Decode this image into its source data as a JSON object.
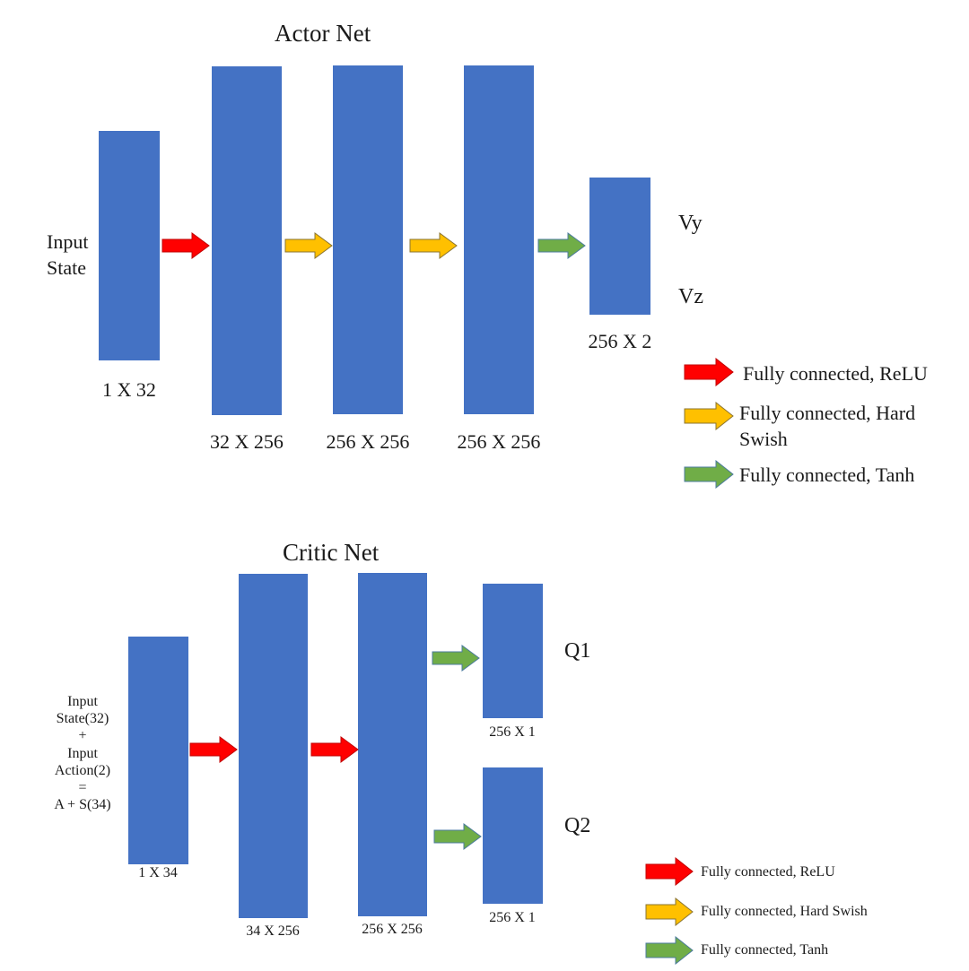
{
  "colors": {
    "layer": "#4472c4",
    "relu": "#ff0000",
    "hard_swish": "#ffc000",
    "tanh": "#70ad47"
  },
  "actor": {
    "title": "Actor Net",
    "input_label_1": "Input",
    "input_label_2": "State",
    "layers": [
      {
        "dim": "1 X 32"
      },
      {
        "dim": "32 X 256"
      },
      {
        "dim": "256 X 256"
      },
      {
        "dim": "256 X 256"
      },
      {
        "dim": "256 X 2"
      }
    ],
    "outputs": [
      "Vy",
      "Vz"
    ],
    "arrows": [
      "relu",
      "hard_swish",
      "hard_swish",
      "tanh"
    ],
    "legend": [
      {
        "type": "relu",
        "label": "Fully connected, ReLU"
      },
      {
        "type": "hard_swish",
        "label_1": "Fully connected, Hard",
        "label_2": "Swish"
      },
      {
        "type": "tanh",
        "label": "Fully connected, Tanh"
      }
    ]
  },
  "critic": {
    "title": "Critic Net",
    "input_lines": [
      "Input",
      "State(32)",
      "+",
      "Input",
      "Action(2)",
      "=",
      "A + S(34)"
    ],
    "layers": [
      {
        "dim": "1 X 34"
      },
      {
        "dim": "34 X 256"
      },
      {
        "dim": "256 X 256"
      },
      {
        "dim": "256 X 1"
      },
      {
        "dim": "256 X 1"
      }
    ],
    "outputs": [
      "Q1",
      "Q2"
    ],
    "arrows": [
      "relu",
      "relu",
      "tanh",
      "tanh"
    ],
    "legend": [
      {
        "type": "relu",
        "label": "Fully connected, ReLU"
      },
      {
        "type": "hard_swish",
        "label": "Fully connected, Hard Swish"
      },
      {
        "type": "tanh",
        "label": "Fully connected, Tanh"
      }
    ]
  }
}
